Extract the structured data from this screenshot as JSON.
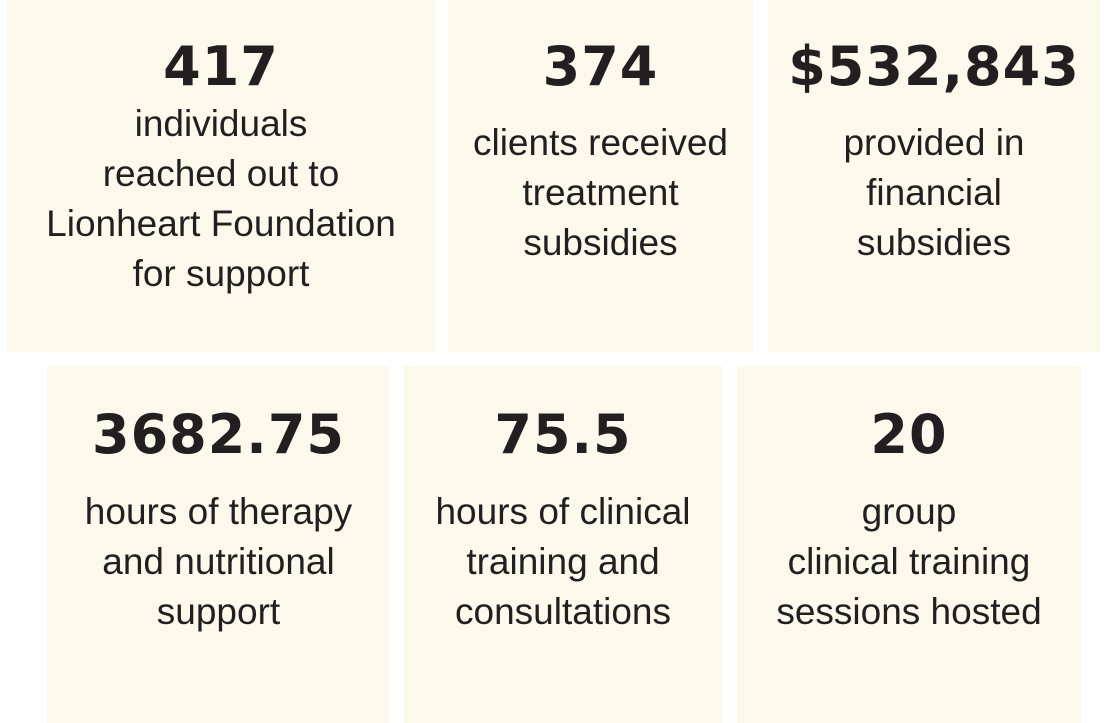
{
  "cards": [
    {
      "value": "417",
      "label": [
        "individuals",
        "reached out to",
        "Lionheart Foundation",
        "for support"
      ]
    },
    {
      "value": "374",
      "label": [
        "clients received",
        "treatment",
        "subsidies"
      ]
    },
    {
      "value": "$532,843",
      "label": [
        "provided in",
        "financial",
        "subsidies"
      ]
    },
    {
      "value": "3682.75",
      "label": [
        "hours of therapy",
        "and nutritional",
        "support"
      ]
    },
    {
      "value": "75.5",
      "label": [
        "hours of clinical",
        "training and",
        "consultations"
      ]
    },
    {
      "value": "20",
      "label": [
        "group",
        "clinical training",
        "sessions hosted"
      ]
    }
  ]
}
